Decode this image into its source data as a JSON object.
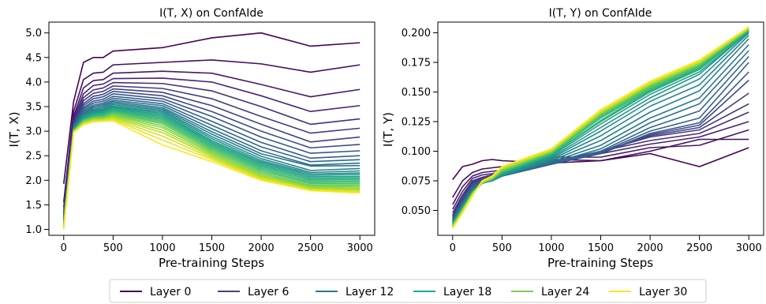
{
  "figure": {
    "legend_position": "bottom-center",
    "legend_entries": [
      {
        "label": "Layer 0",
        "color": "#440154"
      },
      {
        "label": "Layer 6",
        "color": "#414487"
      },
      {
        "label": "Layer 12",
        "color": "#2a788e"
      },
      {
        "label": "Layer 18",
        "color": "#22a884"
      },
      {
        "label": "Layer 24",
        "color": "#7ad151"
      },
      {
        "label": "Layer 30",
        "color": "#fde725"
      }
    ]
  },
  "chart_data": [
    {
      "type": "line",
      "title": "I(T, X) on ConfAIde",
      "xlabel": "Pre-training Steps",
      "ylabel": "I(T, X)",
      "colormap": "viridis",
      "num_layers": 31,
      "x": [
        0,
        100,
        200,
        300,
        400,
        500,
        1000,
        1500,
        2000,
        2500,
        3000
      ],
      "xticks": [
        0,
        500,
        1000,
        1500,
        2000,
        2500,
        3000
      ],
      "xlim": [
        -150,
        3150
      ],
      "ylim": [
        0.88,
        5.22
      ],
      "yticks": [
        1.0,
        1.5,
        2.0,
        2.5,
        3.0,
        3.5,
        4.0,
        4.5,
        5.0
      ],
      "ytick_labels": [
        "1.0",
        "1.5",
        "2.0",
        "2.5",
        "3.0",
        "3.5",
        "4.0",
        "4.5",
        "5.0"
      ],
      "series": [
        {
          "layer": 0,
          "values": [
            1.93,
            3.6,
            4.4,
            4.5,
            4.5,
            4.63,
            4.7,
            4.9,
            5.0,
            4.73,
            4.8
          ]
        },
        {
          "layer": 1,
          "values": [
            1.55,
            3.4,
            4.05,
            4.18,
            4.2,
            4.35,
            4.4,
            4.45,
            4.37,
            4.2,
            4.35
          ]
        },
        {
          "layer": 2,
          "values": [
            1.45,
            3.3,
            3.88,
            4.03,
            4.05,
            4.18,
            4.22,
            4.18,
            3.95,
            3.7,
            3.85
          ]
        },
        {
          "layer": 3,
          "values": [
            1.38,
            3.25,
            3.76,
            3.93,
            3.96,
            4.07,
            4.08,
            4.0,
            3.72,
            3.4,
            3.52
          ]
        },
        {
          "layer": 4,
          "values": [
            1.33,
            3.2,
            3.68,
            3.84,
            3.88,
            3.99,
            3.97,
            3.82,
            3.5,
            3.14,
            3.25
          ]
        },
        {
          "layer": 5,
          "values": [
            1.3,
            3.17,
            3.62,
            3.77,
            3.81,
            3.92,
            3.87,
            3.66,
            3.3,
            2.96,
            3.06
          ]
        },
        {
          "layer": 6,
          "values": [
            1.27,
            3.15,
            3.56,
            3.71,
            3.75,
            3.86,
            3.79,
            3.52,
            3.14,
            2.78,
            2.88
          ]
        },
        {
          "layer": 7,
          "values": [
            1.25,
            3.13,
            3.52,
            3.66,
            3.7,
            3.81,
            3.72,
            3.4,
            3.0,
            2.66,
            2.73
          ]
        },
        {
          "layer": 8,
          "values": [
            1.23,
            3.11,
            3.48,
            3.61,
            3.65,
            3.76,
            3.66,
            3.3,
            2.88,
            2.55,
            2.6
          ]
        },
        {
          "layer": 9,
          "values": [
            1.21,
            3.1,
            3.45,
            3.57,
            3.61,
            3.71,
            3.61,
            3.2,
            2.77,
            2.45,
            2.5
          ]
        },
        {
          "layer": 10,
          "values": [
            1.2,
            3.09,
            3.42,
            3.53,
            3.57,
            3.67,
            3.56,
            3.12,
            2.68,
            2.38,
            2.42
          ]
        },
        {
          "layer": 11,
          "values": [
            1.19,
            3.08,
            3.39,
            3.5,
            3.54,
            3.63,
            3.52,
            3.05,
            2.6,
            2.31,
            2.35
          ]
        },
        {
          "layer": 12,
          "values": [
            1.18,
            3.07,
            3.37,
            3.47,
            3.51,
            3.6,
            3.48,
            2.99,
            2.54,
            2.29,
            2.3
          ]
        },
        {
          "layer": 13,
          "values": [
            1.17,
            3.06,
            3.35,
            3.44,
            3.48,
            3.57,
            3.45,
            2.94,
            2.49,
            2.2,
            2.24
          ]
        },
        {
          "layer": 14,
          "values": [
            1.16,
            3.05,
            3.33,
            3.42,
            3.45,
            3.54,
            3.42,
            2.89,
            2.44,
            2.16,
            2.19
          ]
        },
        {
          "layer": 15,
          "values": [
            1.15,
            3.05,
            3.31,
            3.4,
            3.43,
            3.51,
            3.39,
            2.85,
            2.4,
            2.13,
            2.15
          ]
        },
        {
          "layer": 16,
          "values": [
            1.14,
            3.04,
            3.29,
            3.38,
            3.41,
            3.49,
            3.36,
            2.81,
            2.37,
            2.1,
            2.12
          ]
        },
        {
          "layer": 17,
          "values": [
            1.13,
            3.03,
            3.27,
            3.36,
            3.39,
            3.47,
            3.33,
            2.78,
            2.34,
            2.07,
            2.08
          ]
        },
        {
          "layer": 18,
          "values": [
            1.12,
            3.03,
            3.26,
            3.34,
            3.37,
            3.45,
            3.3,
            2.75,
            2.31,
            2.04,
            2.05
          ]
        },
        {
          "layer": 19,
          "values": [
            1.11,
            3.02,
            3.24,
            3.32,
            3.35,
            3.43,
            3.27,
            2.72,
            2.28,
            2.01,
            2.02
          ]
        },
        {
          "layer": 20,
          "values": [
            1.1,
            3.02,
            3.23,
            3.31,
            3.33,
            3.41,
            3.24,
            2.69,
            2.25,
            1.98,
            1.99
          ]
        },
        {
          "layer": 21,
          "values": [
            1.09,
            3.01,
            3.22,
            3.29,
            3.31,
            3.39,
            3.21,
            2.66,
            2.22,
            1.95,
            1.96
          ]
        },
        {
          "layer": 22,
          "values": [
            1.08,
            3.01,
            3.21,
            3.28,
            3.3,
            3.37,
            3.18,
            2.63,
            2.19,
            1.93,
            1.93
          ]
        },
        {
          "layer": 23,
          "values": [
            1.07,
            3.0,
            3.2,
            3.27,
            3.28,
            3.35,
            3.15,
            2.6,
            2.16,
            1.9,
            1.9
          ]
        },
        {
          "layer": 24,
          "values": [
            1.06,
            3.0,
            3.19,
            3.26,
            3.27,
            3.33,
            3.11,
            2.57,
            2.13,
            1.88,
            1.87
          ]
        },
        {
          "layer": 25,
          "values": [
            1.05,
            2.99,
            3.18,
            3.24,
            3.25,
            3.31,
            3.07,
            2.54,
            2.1,
            1.86,
            1.84
          ]
        },
        {
          "layer": 26,
          "values": [
            1.04,
            2.99,
            3.17,
            3.23,
            3.24,
            3.29,
            3.02,
            2.51,
            2.08,
            1.84,
            1.82
          ]
        },
        {
          "layer": 27,
          "values": [
            1.03,
            2.98,
            3.16,
            3.22,
            3.23,
            3.27,
            2.97,
            2.48,
            2.06,
            1.82,
            1.8
          ]
        },
        {
          "layer": 28,
          "values": [
            1.02,
            2.98,
            3.15,
            3.21,
            3.22,
            3.25,
            2.9,
            2.45,
            2.04,
            1.81,
            1.78
          ]
        },
        {
          "layer": 29,
          "values": [
            1.01,
            2.98,
            3.14,
            3.2,
            3.21,
            3.23,
            2.82,
            2.42,
            2.02,
            1.8,
            1.76
          ]
        },
        {
          "layer": 30,
          "values": [
            1.0,
            2.97,
            3.13,
            3.19,
            3.2,
            3.21,
            2.72,
            2.38,
            2.0,
            1.79,
            1.74
          ]
        }
      ]
    },
    {
      "type": "line",
      "title": "I(T, Y) on ConfAIde",
      "xlabel": "Pre-training Steps",
      "ylabel": "I(T, Y)",
      "colormap": "viridis",
      "num_layers": 31,
      "x": [
        0,
        100,
        200,
        300,
        400,
        500,
        1000,
        1500,
        2000,
        2500,
        3000
      ],
      "xticks": [
        0,
        500,
        1000,
        1500,
        2000,
        2500,
        3000
      ],
      "xlim": [
        -150,
        3150
      ],
      "ylim": [
        0.029,
        0.209
      ],
      "yticks": [
        0.05,
        0.075,
        0.1,
        0.125,
        0.15,
        0.175,
        0.2
      ],
      "ytick_labels": [
        "0.050",
        "0.075",
        "0.100",
        "0.125",
        "0.150",
        "0.175",
        "0.200"
      ],
      "series": [
        {
          "layer": 0,
          "values": [
            0.076,
            0.087,
            0.089,
            0.092,
            0.093,
            0.092,
            0.09,
            0.092,
            0.098,
            0.087,
            0.103
          ]
        },
        {
          "layer": 1,
          "values": [
            0.061,
            0.075,
            0.082,
            0.085,
            0.086,
            0.087,
            0.093,
            0.092,
            0.1,
            0.11,
            0.11
          ]
        },
        {
          "layer": 2,
          "values": [
            0.055,
            0.07,
            0.079,
            0.082,
            0.083,
            0.084,
            0.095,
            0.095,
            0.103,
            0.105,
            0.118
          ]
        },
        {
          "layer": 3,
          "values": [
            0.051,
            0.066,
            0.077,
            0.08,
            0.081,
            0.083,
            0.092,
            0.098,
            0.106,
            0.112,
            0.125
          ]
        },
        {
          "layer": 4,
          "values": [
            0.048,
            0.063,
            0.075,
            0.078,
            0.08,
            0.082,
            0.091,
            0.1,
            0.109,
            0.115,
            0.133
          ]
        },
        {
          "layer": 5,
          "values": [
            0.046,
            0.061,
            0.074,
            0.077,
            0.079,
            0.081,
            0.09,
            0.1,
            0.112,
            0.118,
            0.14
          ]
        },
        {
          "layer": 6,
          "values": [
            0.045,
            0.06,
            0.073,
            0.076,
            0.078,
            0.08,
            0.089,
            0.099,
            0.113,
            0.12,
            0.149
          ]
        },
        {
          "layer": 7,
          "values": [
            0.044,
            0.059,
            0.072,
            0.075,
            0.077,
            0.079,
            0.089,
            0.098,
            0.114,
            0.122,
            0.16
          ]
        },
        {
          "layer": 8,
          "values": [
            0.043,
            0.058,
            0.071,
            0.075,
            0.077,
            0.079,
            0.089,
            0.098,
            0.115,
            0.124,
            0.167
          ]
        },
        {
          "layer": 9,
          "values": [
            0.042,
            0.057,
            0.07,
            0.074,
            0.076,
            0.079,
            0.089,
            0.099,
            0.117,
            0.128,
            0.175
          ]
        },
        {
          "layer": 10,
          "values": [
            0.042,
            0.056,
            0.069,
            0.074,
            0.076,
            0.079,
            0.09,
            0.1,
            0.12,
            0.134,
            0.18
          ]
        },
        {
          "layer": 11,
          "values": [
            0.041,
            0.055,
            0.068,
            0.073,
            0.075,
            0.079,
            0.09,
            0.102,
            0.124,
            0.14,
            0.185
          ]
        },
        {
          "layer": 12,
          "values": [
            0.041,
            0.055,
            0.068,
            0.073,
            0.075,
            0.079,
            0.091,
            0.105,
            0.128,
            0.145,
            0.19
          ]
        },
        {
          "layer": 13,
          "values": [
            0.04,
            0.054,
            0.067,
            0.073,
            0.075,
            0.079,
            0.092,
            0.109,
            0.133,
            0.151,
            0.195
          ]
        },
        {
          "layer": 14,
          "values": [
            0.04,
            0.054,
            0.067,
            0.073,
            0.075,
            0.079,
            0.093,
            0.113,
            0.138,
            0.156,
            0.198
          ]
        },
        {
          "layer": 15,
          "values": [
            0.04,
            0.053,
            0.066,
            0.073,
            0.075,
            0.08,
            0.094,
            0.117,
            0.142,
            0.161,
            0.2
          ]
        },
        {
          "layer": 16,
          "values": [
            0.039,
            0.053,
            0.066,
            0.073,
            0.075,
            0.08,
            0.095,
            0.12,
            0.145,
            0.165,
            0.201
          ]
        },
        {
          "layer": 17,
          "values": [
            0.039,
            0.052,
            0.066,
            0.073,
            0.076,
            0.081,
            0.096,
            0.123,
            0.148,
            0.167,
            0.201
          ]
        },
        {
          "layer": 18,
          "values": [
            0.039,
            0.052,
            0.065,
            0.073,
            0.076,
            0.081,
            0.097,
            0.125,
            0.15,
            0.169,
            0.202
          ]
        },
        {
          "layer": 19,
          "values": [
            0.038,
            0.052,
            0.065,
            0.073,
            0.076,
            0.082,
            0.097,
            0.126,
            0.151,
            0.17,
            0.202
          ]
        },
        {
          "layer": 20,
          "values": [
            0.038,
            0.051,
            0.065,
            0.073,
            0.076,
            0.082,
            0.098,
            0.128,
            0.152,
            0.171,
            0.202
          ]
        },
        {
          "layer": 21,
          "values": [
            0.038,
            0.051,
            0.065,
            0.073,
            0.076,
            0.083,
            0.098,
            0.129,
            0.153,
            0.172,
            0.203
          ]
        },
        {
          "layer": 22,
          "values": [
            0.037,
            0.051,
            0.064,
            0.073,
            0.077,
            0.083,
            0.099,
            0.13,
            0.154,
            0.173,
            0.203
          ]
        },
        {
          "layer": 23,
          "values": [
            0.037,
            0.05,
            0.064,
            0.074,
            0.077,
            0.084,
            0.099,
            0.131,
            0.155,
            0.173,
            0.203
          ]
        },
        {
          "layer": 24,
          "values": [
            0.037,
            0.05,
            0.064,
            0.074,
            0.077,
            0.084,
            0.1,
            0.132,
            0.156,
            0.174,
            0.203
          ]
        },
        {
          "layer": 25,
          "values": [
            0.036,
            0.05,
            0.064,
            0.074,
            0.077,
            0.085,
            0.1,
            0.132,
            0.156,
            0.174,
            0.204
          ]
        },
        {
          "layer": 26,
          "values": [
            0.036,
            0.049,
            0.063,
            0.074,
            0.078,
            0.085,
            0.1,
            0.133,
            0.157,
            0.175,
            0.204
          ]
        },
        {
          "layer": 27,
          "values": [
            0.036,
            0.049,
            0.063,
            0.074,
            0.078,
            0.086,
            0.101,
            0.133,
            0.157,
            0.175,
            0.204
          ]
        },
        {
          "layer": 28,
          "values": [
            0.035,
            0.049,
            0.063,
            0.074,
            0.078,
            0.086,
            0.101,
            0.134,
            0.158,
            0.176,
            0.204
          ]
        },
        {
          "layer": 29,
          "values": [
            0.035,
            0.048,
            0.063,
            0.075,
            0.079,
            0.087,
            0.102,
            0.134,
            0.158,
            0.176,
            0.205
          ]
        },
        {
          "layer": 30,
          "values": [
            0.035,
            0.048,
            0.062,
            0.075,
            0.079,
            0.087,
            0.102,
            0.135,
            0.159,
            0.177,
            0.205
          ]
        }
      ]
    }
  ]
}
